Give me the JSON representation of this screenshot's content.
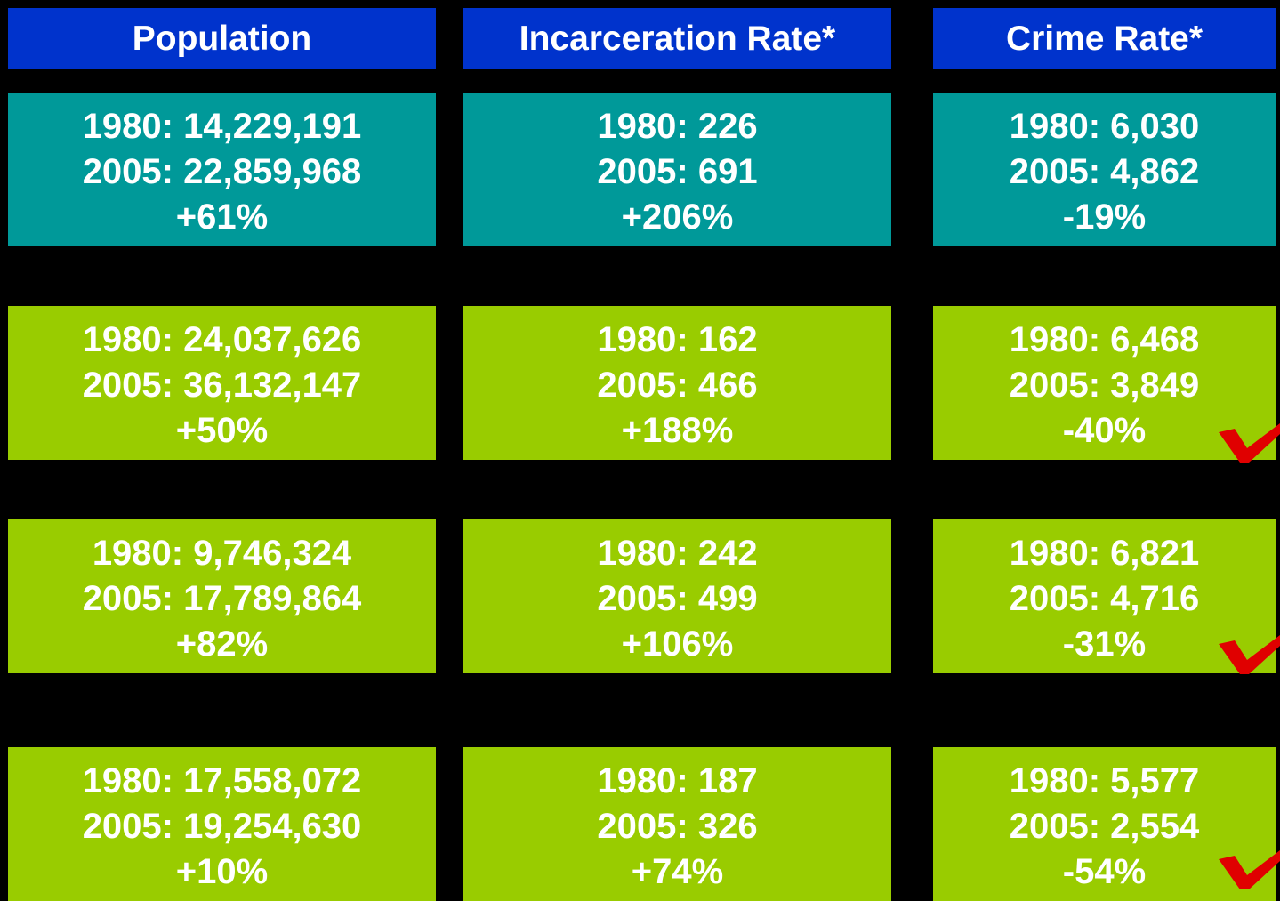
{
  "header": [
    "Population",
    "Incarceration Rate*",
    "Crime Rate*"
  ],
  "rows": [
    {
      "cells": [
        [
          "1980: 14,229,191",
          "2005: 22,859,968",
          "+61%"
        ],
        [
          "1980: 226",
          "2005: 691",
          "+206%"
        ],
        [
          "1980: 6,030",
          "2005: 4,862",
          "-19%"
        ]
      ]
    },
    {
      "cells": [
        [
          "1980: 24,037,626",
          "2005: 36,132,147",
          "+50%"
        ],
        [
          "1980: 162",
          "2005: 466",
          "+188%"
        ],
        [
          "1980: 6,468",
          "2005: 3,849",
          "-40%"
        ]
      ]
    },
    {
      "cells": [
        [
          "1980: 9,746,324",
          "2005: 17,789,864",
          "+82%"
        ],
        [
          "1980: 242",
          "2005: 499",
          "+106%"
        ],
        [
          "1980: 6,821",
          "2005: 4,716",
          "-31%"
        ]
      ]
    },
    {
      "cells": [
        [
          "1980: 17,558,072",
          "2005: 19,254,630",
          "+10%"
        ],
        [
          "1980: 187",
          "2005: 326",
          "+74%"
        ],
        [
          "1980: 5,577",
          "2005: 2,554",
          "-54%"
        ]
      ]
    }
  ]
}
